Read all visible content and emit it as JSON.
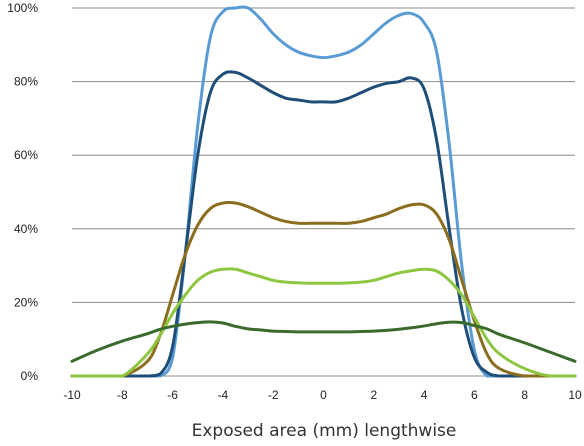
{
  "chart_data": {
    "type": "line",
    "title": "",
    "xlabel": "Exposed area (mm) lengthwise",
    "ylabel": "",
    "xlim": [
      -10,
      10
    ],
    "ylim": [
      0,
      100
    ],
    "grid": "horizontal",
    "x_ticks": [
      "-10",
      "-8",
      "-6",
      "-4",
      "-2",
      "0",
      "2",
      "4",
      "6",
      "8",
      "10"
    ],
    "y_ticks": [
      "0%",
      "20%",
      "40%",
      "60%",
      "80%",
      "100%"
    ],
    "x": [
      -10,
      -9,
      -8,
      -7,
      -6.5,
      -6,
      -5.5,
      -5,
      -4.5,
      -4,
      -3.5,
      -3,
      -2.5,
      -2,
      -1.5,
      -1,
      -0.5,
      0,
      0.5,
      1,
      1.5,
      2,
      2.5,
      3,
      3.5,
      4,
      4.5,
      5,
      5.5,
      6,
      6.5,
      7,
      8,
      9,
      10
    ],
    "series": [
      {
        "color": "#5b9bd5",
        "values": [
          0,
          0,
          0,
          0,
          0,
          5,
          33,
          68,
          92,
          99,
          100,
          100,
          97,
          93,
          90,
          88,
          87,
          86.5,
          87,
          88,
          90,
          93,
          96,
          98,
          98.5,
          96,
          88,
          63,
          30,
          7,
          0,
          0,
          0,
          0,
          0
        ]
      },
      {
        "color": "#1f4e79",
        "values": [
          0,
          0,
          0,
          0,
          0.5,
          8,
          33,
          60,
          77,
          82,
          82.5,
          81,
          79,
          77,
          75.5,
          75,
          74.5,
          74.5,
          74.5,
          75.5,
          77,
          78.5,
          79.5,
          80,
          81,
          78,
          64,
          40,
          18,
          5,
          1,
          0,
          0,
          0,
          0
        ]
      },
      {
        "color": "#8b6d1f",
        "values": [
          0,
          0,
          0,
          4,
          11,
          22,
          33,
          41,
          45.5,
          47,
          47,
          46,
          44.5,
          43,
          42,
          41.5,
          41.5,
          41.5,
          41.5,
          41.5,
          42,
          43,
          44,
          45.5,
          46.5,
          46.5,
          44,
          37,
          26,
          15,
          6,
          2,
          0,
          0,
          0
        ]
      },
      {
        "color": "#8dc63f",
        "values": [
          0,
          0,
          0,
          6,
          11,
          17,
          22,
          26,
          28.2,
          29,
          29,
          28,
          27,
          26,
          25.5,
          25.3,
          25.2,
          25.2,
          25.2,
          25.3,
          25.5,
          26,
          27,
          28,
          28.6,
          29,
          28.5,
          26,
          22,
          16,
          10,
          6,
          2,
          0,
          0
        ]
      },
      {
        "color": "#3a6b2c",
        "values": [
          4,
          7,
          9.5,
          11.5,
          12.7,
          13.5,
          14.1,
          14.5,
          14.7,
          14.4,
          13.5,
          12.8,
          12.5,
          12.2,
          12.1,
          12,
          12,
          12,
          12,
          12,
          12.1,
          12.2,
          12.4,
          12.7,
          13.1,
          13.6,
          14.2,
          14.6,
          14.5,
          13.7,
          12.8,
          11.3,
          9,
          6.5,
          4
        ]
      }
    ]
  }
}
